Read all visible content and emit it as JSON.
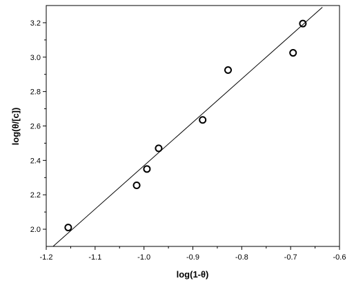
{
  "chart_data": {
    "type": "scatter",
    "title": "",
    "xlabel": "log(1-θ)",
    "ylabel": "log(θ/[c])",
    "xlim": [
      -1.2,
      -0.6
    ],
    "ylim": [
      1.9,
      3.3
    ],
    "xticks": [
      -1.2,
      -1.1,
      -1.0,
      -0.9,
      -0.8,
      -0.7,
      -0.6
    ],
    "xtick_labels": [
      "-1.2",
      "-1.1",
      "-1.0",
      "-0.9",
      "-0.8",
      "-0.7",
      "-0.6"
    ],
    "yticks": [
      2.0,
      2.2,
      2.4,
      2.6,
      2.8,
      3.0,
      3.2
    ],
    "ytick_labels": [
      "2.0",
      "2.2",
      "2.4",
      "2.6",
      "2.8",
      "3.0",
      "3.2"
    ],
    "grid": false,
    "points": [
      {
        "x": -1.155,
        "y": 2.01
      },
      {
        "x": -1.015,
        "y": 2.255
      },
      {
        "x": -0.994,
        "y": 2.35
      },
      {
        "x": -0.97,
        "y": 2.47
      },
      {
        "x": -0.88,
        "y": 2.635
      },
      {
        "x": -0.828,
        "y": 2.925
      },
      {
        "x": -0.695,
        "y": 3.025
      },
      {
        "x": -0.675,
        "y": 3.195
      }
    ],
    "fit_line": {
      "x": [
        -1.19,
        -0.635
      ],
      "y": [
        1.89,
        3.29
      ]
    }
  }
}
